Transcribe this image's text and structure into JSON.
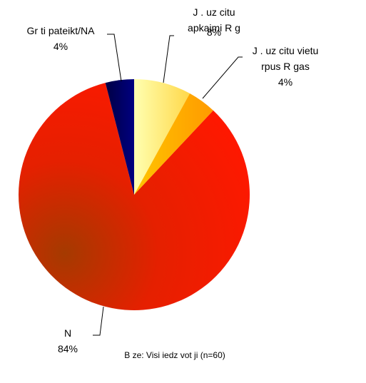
{
  "chart_data": {
    "type": "pie",
    "categories": [
      "J   .   uz citu\napkaimi  R g",
      "J   .   uz citu vietu\nrpus  R gas",
      "N",
      "Gr  ti pateikt/NA"
    ],
    "values": [
      8,
      4,
      84,
      4
    ],
    "value_labels": [
      "8%",
      "4%",
      "84%",
      "4%"
    ],
    "colors": [
      "#fff27a",
      "#ffb400",
      "#ff1a00",
      "#000066"
    ],
    "start_angle": 0,
    "direction": "clockwise",
    "note": "B  ze: Visi iedz  vot  ji (n=60)"
  }
}
